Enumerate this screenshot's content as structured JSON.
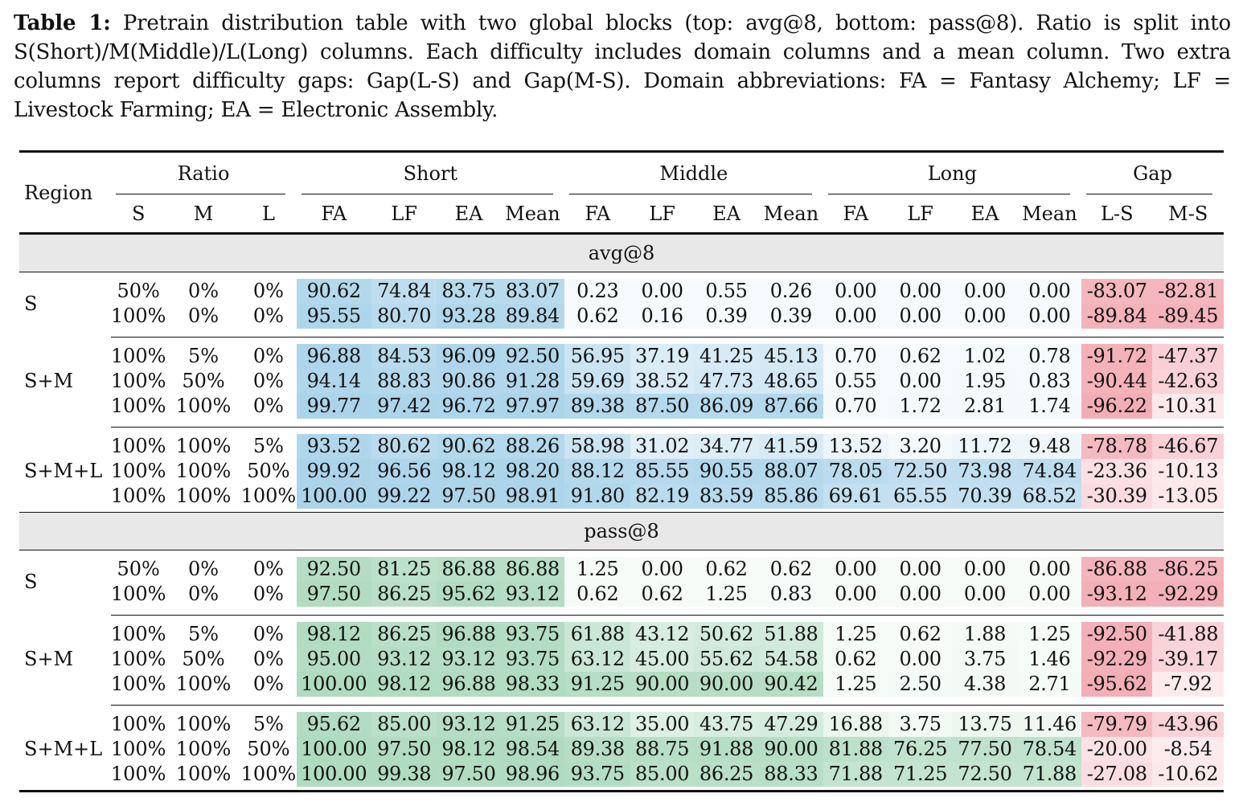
{
  "caption": {
    "label": "Table 1:",
    "text": "Pretrain distribution table with two global blocks (top: avg@8, bottom: pass@8). Ratio is split into S(Short)/M(Middle)/L(Long) columns. Each difficulty includes domain columns and a mean column. Two extra columns report difficulty gaps: Gap(L-S) and Gap(M-S). Domain abbreviations: FA = Fantasy Alchemy; LF = Livestock Farming; EA = Electronic Assembly."
  },
  "header": {
    "region": "Region",
    "groups": [
      "Ratio",
      "Short",
      "Middle",
      "Long",
      "Gap"
    ],
    "ratio_cols": [
      "S",
      "M",
      "L"
    ],
    "domain_cols": [
      "FA",
      "LF",
      "EA",
      "Mean"
    ],
    "gap_cols": [
      "L-S",
      "M-S"
    ]
  },
  "colors": {
    "avg_accent": "#3d8fc6",
    "pass_accent": "#3aa36a",
    "gap_accent": "#e4505e",
    "block_bar": "#e8e8e8"
  },
  "blocks": [
    {
      "title": "avg@8",
      "palette": "blue",
      "groups": [
        {
          "region": "S",
          "rows": [
            {
              "ratio": [
                "50%",
                "0%",
                "0%"
              ],
              "short": [
                "90.62",
                "74.84",
                "83.75",
                "83.07"
              ],
              "middle": [
                "0.23",
                "0.00",
                "0.55",
                "0.26"
              ],
              "long": [
                "0.00",
                "0.00",
                "0.00",
                "0.00"
              ],
              "gap": [
                "-83.07",
                "-82.81"
              ]
            },
            {
              "ratio": [
                "100%",
                "0%",
                "0%"
              ],
              "short": [
                "95.55",
                "80.70",
                "93.28",
                "89.84"
              ],
              "middle": [
                "0.62",
                "0.16",
                "0.39",
                "0.39"
              ],
              "long": [
                "0.00",
                "0.00",
                "0.00",
                "0.00"
              ],
              "gap": [
                "-89.84",
                "-89.45"
              ]
            }
          ]
        },
        {
          "region": "S+M",
          "rows": [
            {
              "ratio": [
                "100%",
                "5%",
                "0%"
              ],
              "short": [
                "96.88",
                "84.53",
                "96.09",
                "92.50"
              ],
              "middle": [
                "56.95",
                "37.19",
                "41.25",
                "45.13"
              ],
              "long": [
                "0.70",
                "0.62",
                "1.02",
                "0.78"
              ],
              "gap": [
                "-91.72",
                "-47.37"
              ]
            },
            {
              "ratio": [
                "100%",
                "50%",
                "0%"
              ],
              "short": [
                "94.14",
                "88.83",
                "90.86",
                "91.28"
              ],
              "middle": [
                "59.69",
                "38.52",
                "47.73",
                "48.65"
              ],
              "long": [
                "0.55",
                "0.00",
                "1.95",
                "0.83"
              ],
              "gap": [
                "-90.44",
                "-42.63"
              ]
            },
            {
              "ratio": [
                "100%",
                "100%",
                "0%"
              ],
              "short": [
                "99.77",
                "97.42",
                "96.72",
                "97.97"
              ],
              "middle": [
                "89.38",
                "87.50",
                "86.09",
                "87.66"
              ],
              "long": [
                "0.70",
                "1.72",
                "2.81",
                "1.74"
              ],
              "gap": [
                "-96.22",
                "-10.31"
              ]
            }
          ]
        },
        {
          "region": "S+M+L",
          "rows": [
            {
              "ratio": [
                "100%",
                "100%",
                "5%"
              ],
              "short": [
                "93.52",
                "80.62",
                "90.62",
                "88.26"
              ],
              "middle": [
                "58.98",
                "31.02",
                "34.77",
                "41.59"
              ],
              "long": [
                "13.52",
                "3.20",
                "11.72",
                "9.48"
              ],
              "gap": [
                "-78.78",
                "-46.67"
              ]
            },
            {
              "ratio": [
                "100%",
                "100%",
                "50%"
              ],
              "short": [
                "99.92",
                "96.56",
                "98.12",
                "98.20"
              ],
              "middle": [
                "88.12",
                "85.55",
                "90.55",
                "88.07"
              ],
              "long": [
                "78.05",
                "72.50",
                "73.98",
                "74.84"
              ],
              "gap": [
                "-23.36",
                "-10.13"
              ]
            },
            {
              "ratio": [
                "100%",
                "100%",
                "100%"
              ],
              "short": [
                "100.00",
                "99.22",
                "97.50",
                "98.91"
              ],
              "middle": [
                "91.80",
                "82.19",
                "83.59",
                "85.86"
              ],
              "long": [
                "69.61",
                "65.55",
                "70.39",
                "68.52"
              ],
              "gap": [
                "-30.39",
                "-13.05"
              ]
            }
          ]
        }
      ]
    },
    {
      "title": "pass@8",
      "palette": "green",
      "groups": [
        {
          "region": "S",
          "rows": [
            {
              "ratio": [
                "50%",
                "0%",
                "0%"
              ],
              "short": [
                "92.50",
                "81.25",
                "86.88",
                "86.88"
              ],
              "middle": [
                "1.25",
                "0.00",
                "0.62",
                "0.62"
              ],
              "long": [
                "0.00",
                "0.00",
                "0.00",
                "0.00"
              ],
              "gap": [
                "-86.88",
                "-86.25"
              ]
            },
            {
              "ratio": [
                "100%",
                "0%",
                "0%"
              ],
              "short": [
                "97.50",
                "86.25",
                "95.62",
                "93.12"
              ],
              "middle": [
                "0.62",
                "0.62",
                "1.25",
                "0.83"
              ],
              "long": [
                "0.00",
                "0.00",
                "0.00",
                "0.00"
              ],
              "gap": [
                "-93.12",
                "-92.29"
              ]
            }
          ]
        },
        {
          "region": "S+M",
          "rows": [
            {
              "ratio": [
                "100%",
                "5%",
                "0%"
              ],
              "short": [
                "98.12",
                "86.25",
                "96.88",
                "93.75"
              ],
              "middle": [
                "61.88",
                "43.12",
                "50.62",
                "51.88"
              ],
              "long": [
                "1.25",
                "0.62",
                "1.88",
                "1.25"
              ],
              "gap": [
                "-92.50",
                "-41.88"
              ]
            },
            {
              "ratio": [
                "100%",
                "50%",
                "0%"
              ],
              "short": [
                "95.00",
                "93.12",
                "93.12",
                "93.75"
              ],
              "middle": [
                "63.12",
                "45.00",
                "55.62",
                "54.58"
              ],
              "long": [
                "0.62",
                "0.00",
                "3.75",
                "1.46"
              ],
              "gap": [
                "-92.29",
                "-39.17"
              ]
            },
            {
              "ratio": [
                "100%",
                "100%",
                "0%"
              ],
              "short": [
                "100.00",
                "98.12",
                "96.88",
                "98.33"
              ],
              "middle": [
                "91.25",
                "90.00",
                "90.00",
                "90.42"
              ],
              "long": [
                "1.25",
                "2.50",
                "4.38",
                "2.71"
              ],
              "gap": [
                "-95.62",
                "-7.92"
              ]
            }
          ]
        },
        {
          "region": "S+M+L",
          "rows": [
            {
              "ratio": [
                "100%",
                "100%",
                "5%"
              ],
              "short": [
                "95.62",
                "85.00",
                "93.12",
                "91.25"
              ],
              "middle": [
                "63.12",
                "35.00",
                "43.75",
                "47.29"
              ],
              "long": [
                "16.88",
                "3.75",
                "13.75",
                "11.46"
              ],
              "gap": [
                "-79.79",
                "-43.96"
              ]
            },
            {
              "ratio": [
                "100%",
                "100%",
                "50%"
              ],
              "short": [
                "100.00",
                "97.50",
                "98.12",
                "98.54"
              ],
              "middle": [
                "89.38",
                "88.75",
                "91.88",
                "90.00"
              ],
              "long": [
                "81.88",
                "76.25",
                "77.50",
                "78.54"
              ],
              "gap": [
                "-20.00",
                "-8.54"
              ]
            },
            {
              "ratio": [
                "100%",
                "100%",
                "100%"
              ],
              "short": [
                "100.00",
                "99.38",
                "97.50",
                "98.96"
              ],
              "middle": [
                "93.75",
                "85.00",
                "86.25",
                "88.33"
              ],
              "long": [
                "71.88",
                "71.25",
                "72.50",
                "71.88"
              ],
              "gap": [
                "-27.08",
                "-10.62"
              ]
            }
          ]
        }
      ]
    }
  ]
}
